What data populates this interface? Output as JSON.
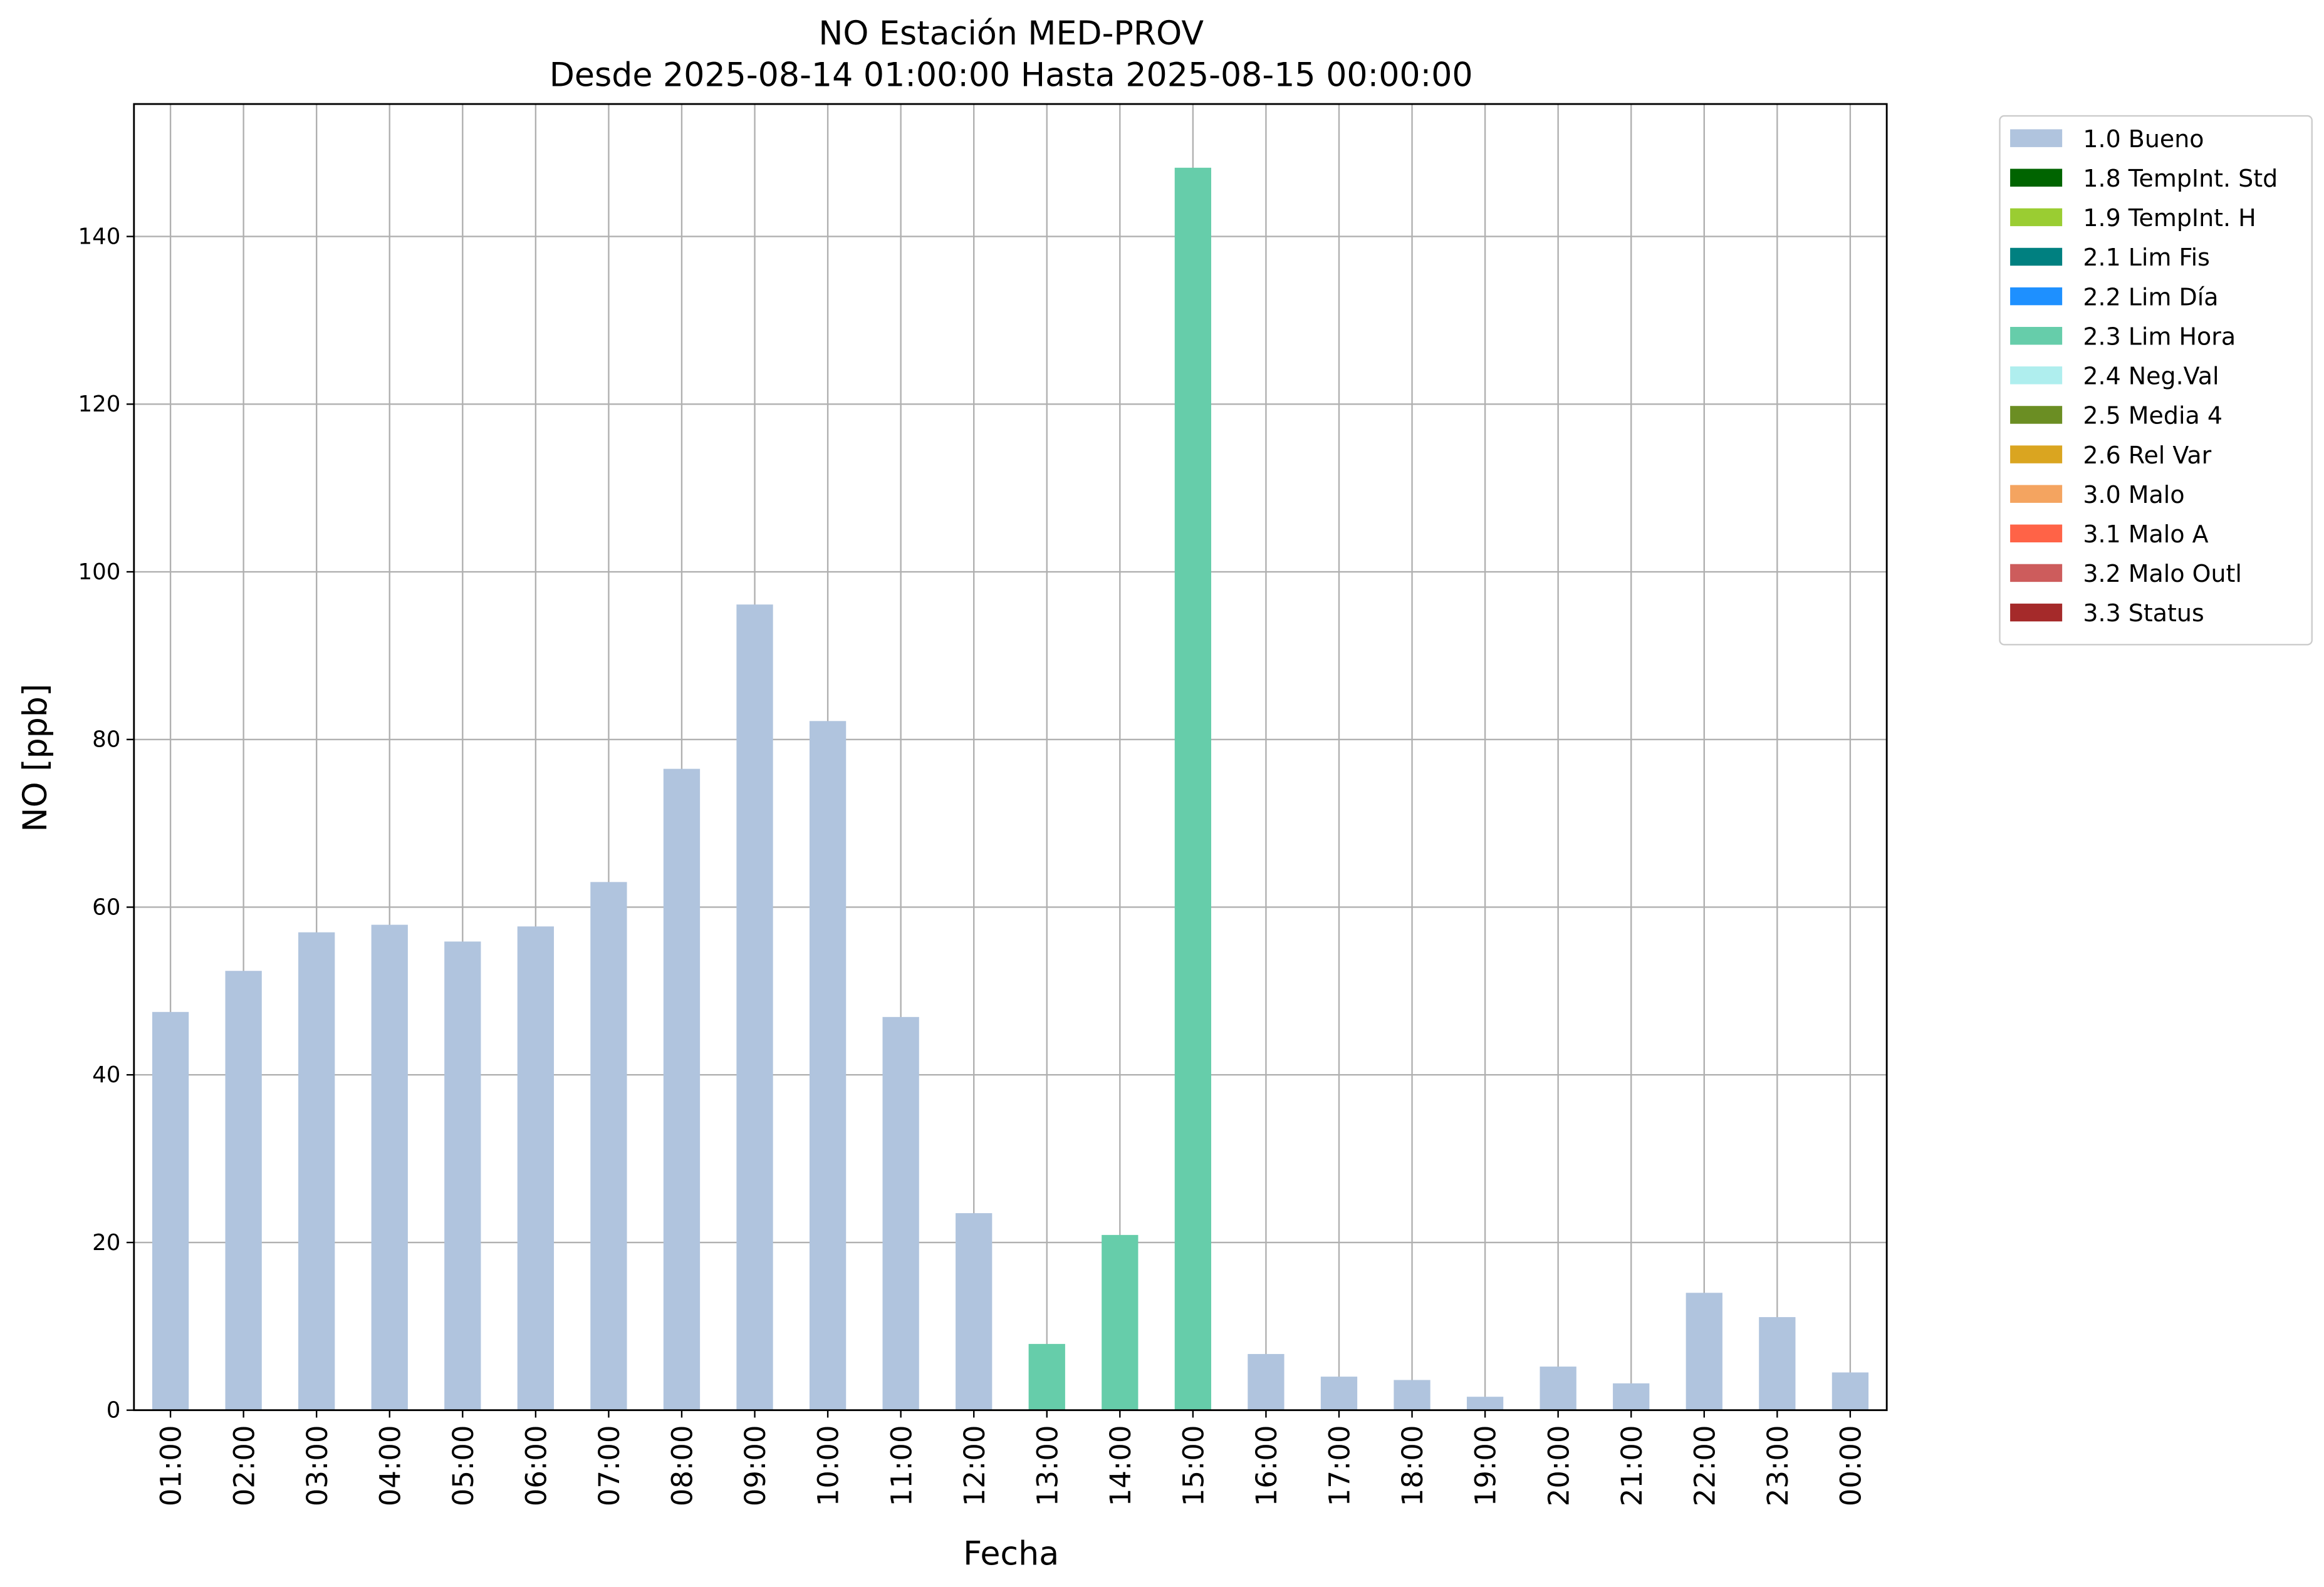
{
  "chart_data": {
    "type": "stacked_bar",
    "title": "NO Estación MED-PROV",
    "subtitle": "Desde 2025-08-14 01:00:00 Hasta 2025-08-15 00:00:00",
    "xlabel": "Fecha",
    "ylabel": "NO [ppb]",
    "categories": [
      "01:00",
      "02:00",
      "03:00",
      "04:00",
      "05:00",
      "06:00",
      "07:00",
      "08:00",
      "09:00",
      "10:00",
      "11:00",
      "12:00",
      "13:00",
      "14:00",
      "15:00",
      "16:00",
      "17:00",
      "18:00",
      "19:00",
      "20:00",
      "21:00",
      "22:00",
      "23:00",
      "00:00"
    ],
    "series": [
      {
        "name": "1.0 Bueno",
        "color": "#b0c4de",
        "values": [
          47.5,
          52.4,
          57,
          57.9,
          55.9,
          57.7,
          63,
          76.5,
          96.1,
          82.2,
          46.9,
          23.5,
          null,
          null,
          null,
          6.7,
          4,
          3.6,
          1.6,
          5.2,
          3.2,
          14,
          11.1,
          4.5
        ]
      },
      {
        "name": "1.8 TempInt. Std",
        "color": "#006400",
        "values": [
          null,
          null,
          null,
          null,
          null,
          null,
          null,
          null,
          null,
          null,
          null,
          null,
          null,
          null,
          null,
          null,
          null,
          null,
          null,
          null,
          null,
          null,
          null,
          null
        ]
      },
      {
        "name": "1.9 TempInt. H",
        "color": "#9acd32",
        "values": [
          null,
          null,
          null,
          null,
          null,
          null,
          null,
          null,
          null,
          null,
          null,
          null,
          null,
          null,
          null,
          null,
          null,
          null,
          null,
          null,
          null,
          null,
          null,
          null
        ]
      },
      {
        "name": "2.1 Lim Fis",
        "color": "#008080",
        "values": [
          null,
          null,
          null,
          null,
          null,
          null,
          null,
          null,
          null,
          null,
          null,
          null,
          null,
          null,
          null,
          null,
          null,
          null,
          null,
          null,
          null,
          null,
          null,
          null
        ]
      },
      {
        "name": "2.2 Lim Día",
        "color": "#1e90ff",
        "values": [
          null,
          null,
          null,
          null,
          null,
          null,
          null,
          null,
          null,
          null,
          null,
          null,
          null,
          null,
          null,
          null,
          null,
          null,
          null,
          null,
          null,
          null,
          null,
          null
        ]
      },
      {
        "name": "2.3 Lim Hora",
        "color": "#66cdaa",
        "values": [
          null,
          null,
          null,
          null,
          null,
          null,
          null,
          null,
          null,
          null,
          null,
          null,
          7.9,
          20.9,
          148.2,
          null,
          null,
          null,
          null,
          null,
          null,
          null,
          null,
          null
        ]
      },
      {
        "name": "2.4 Neg.Val",
        "color": "#afeeee",
        "values": [
          null,
          null,
          null,
          null,
          null,
          null,
          null,
          null,
          null,
          null,
          null,
          null,
          null,
          null,
          null,
          null,
          null,
          null,
          null,
          null,
          null,
          null,
          null,
          null
        ]
      },
      {
        "name": "2.5 Media 4",
        "color": "#6b8e23",
        "values": [
          null,
          null,
          null,
          null,
          null,
          null,
          null,
          null,
          null,
          null,
          null,
          null,
          null,
          null,
          null,
          null,
          null,
          null,
          null,
          null,
          null,
          null,
          null,
          null
        ]
      },
      {
        "name": "2.6 Rel Var",
        "color": "#daa520",
        "values": [
          null,
          null,
          null,
          null,
          null,
          null,
          null,
          null,
          null,
          null,
          null,
          null,
          null,
          null,
          null,
          null,
          null,
          null,
          null,
          null,
          null,
          null,
          null,
          null
        ]
      },
      {
        "name": "3.0 Malo",
        "color": "#f4a460",
        "values": [
          null,
          null,
          null,
          null,
          null,
          null,
          null,
          null,
          null,
          null,
          null,
          null,
          null,
          null,
          null,
          null,
          null,
          null,
          null,
          null,
          null,
          null,
          null,
          null
        ]
      },
      {
        "name": "3.1 Malo A",
        "color": "#ff6347",
        "values": [
          null,
          null,
          null,
          null,
          null,
          null,
          null,
          null,
          null,
          null,
          null,
          null,
          null,
          null,
          null,
          null,
          null,
          null,
          null,
          null,
          null,
          null,
          null,
          null
        ]
      },
      {
        "name": "3.2 Malo Outl",
        "color": "#cd5c5c",
        "values": [
          null,
          null,
          null,
          null,
          null,
          null,
          null,
          null,
          null,
          null,
          null,
          null,
          null,
          null,
          null,
          null,
          null,
          null,
          null,
          null,
          null,
          null,
          null,
          null
        ]
      },
      {
        "name": "3.3 Status",
        "color": "#a52a2a",
        "values": [
          null,
          null,
          null,
          null,
          null,
          null,
          null,
          null,
          null,
          null,
          null,
          null,
          null,
          null,
          null,
          null,
          null,
          null,
          null,
          null,
          null,
          null,
          null,
          null
        ]
      }
    ],
    "ylim": [
      0,
      155.8
    ],
    "yticks": [
      0,
      20,
      40,
      60,
      80,
      100,
      120,
      140
    ],
    "grid": true,
    "legend": "outside-upper-right"
  }
}
